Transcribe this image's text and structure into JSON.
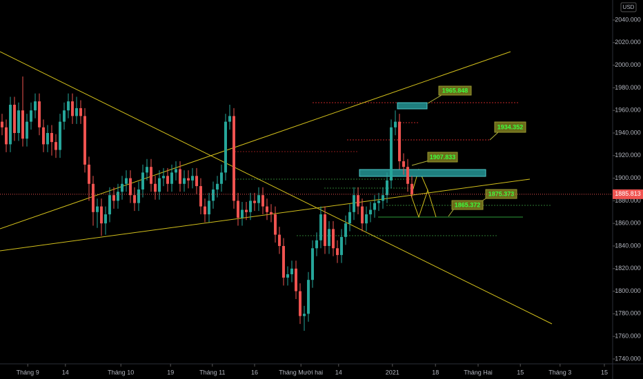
{
  "chart_data": {
    "type": "candlestick",
    "currency": "USD",
    "last_price": 1885.813,
    "colors": {
      "up": "#26a69a",
      "down": "#ef5350"
    },
    "annotations": [
      "1965.848",
      "1934.352",
      "1907.833",
      "1875.373",
      "1865.372"
    ],
    "xlim": [
      -0.5,
      147.5
    ],
    "xticks": [
      {
        "value": 6.2,
        "label": "Tháng 9"
      },
      {
        "value": 15.3,
        "label": "14"
      },
      {
        "value": 28.7,
        "label": "Tháng 10"
      },
      {
        "value": 40.7,
        "label": "19"
      },
      {
        "value": 50.8,
        "label": "Tháng 11"
      },
      {
        "value": 61,
        "label": "16"
      },
      {
        "value": 72.2,
        "label": "Tháng Mười hai"
      },
      {
        "value": 81.3,
        "label": "14"
      },
      {
        "value": 94.3,
        "label": "2021"
      },
      {
        "value": 104.7,
        "label": "18"
      },
      {
        "value": 115,
        "label": "Tháng Hai"
      },
      {
        "value": 125.2,
        "label": "15"
      },
      {
        "value": 134.8,
        "label": "Tháng 3"
      },
      {
        "value": 145.5,
        "label": "15"
      }
    ],
    "ylim": [
      1735.7,
      2057.7
    ],
    "yticks": [
      {
        "value": 1740,
        "label": "1740.000"
      },
      {
        "value": 1760,
        "label": "1760.000"
      },
      {
        "value": 1780,
        "label": "1780.000"
      },
      {
        "value": 1800,
        "label": "1800.000"
      },
      {
        "value": 1820,
        "label": "1820.000"
      },
      {
        "value": 1840,
        "label": "1840.000"
      },
      {
        "value": 1860,
        "label": "1860.000"
      },
      {
        "value": 1880,
        "label": "1880.000"
      },
      {
        "value": 1900,
        "label": "1900.000"
      },
      {
        "value": 1920,
        "label": "1920.000"
      },
      {
        "value": 1940,
        "label": "1940.000"
      },
      {
        "value": 1960,
        "label": "1960.000"
      },
      {
        "value": 1980,
        "label": "1980.000"
      },
      {
        "value": 2000,
        "label": "2000.000"
      },
      {
        "value": 2020,
        "label": "2020.000"
      },
      {
        "value": 2040,
        "label": "2040.000"
      }
    ],
    "open": [
      1950,
      1945,
      1930,
      1965,
      1940,
      1960,
      1935,
      1950,
      1960,
      1968,
      1945,
      1930,
      1940,
      1932,
      1925,
      1950,
      1960,
      1968,
      1955,
      1962,
      1955,
      1912,
      1895,
      1870,
      1875,
      1860,
      1868,
      1885,
      1880,
      1888,
      1895,
      1900,
      1885,
      1878,
      1890,
      1905,
      1910,
      1895,
      1888,
      1900,
      1902,
      1895,
      1905,
      1908,
      1895,
      1900,
      1898,
      1902,
      1893,
      1875,
      1868,
      1880,
      1890,
      1895,
      1905,
      1950,
      1955,
      1880,
      1865,
      1872,
      1870,
      1880,
      1878,
      1885,
      1875,
      1870,
      1868,
      1850,
      1840,
      1812,
      1815,
      1820,
      1800,
      1778,
      1780,
      1810,
      1838,
      1845,
      1868,
      1840,
      1855,
      1838,
      1832,
      1848,
      1860,
      1870,
      1885,
      1875,
      1860,
      1868,
      1872,
      1878,
      1880,
      1885,
      1898,
      1945,
      1950,
      1915,
      1910,
      1895
    ],
    "high": [
      1957,
      1952,
      1972,
      1972,
      1967,
      1990,
      1957,
      1967,
      1975,
      1975,
      1952,
      1947,
      1947,
      1939,
      1957,
      1967,
      1975,
      1975,
      1972,
      1969,
      1962,
      1919,
      1902,
      1882,
      1882,
      1875,
      1892,
      1892,
      1895,
      1902,
      1907,
      1907,
      1892,
      1897,
      1912,
      1917,
      1917,
      1902,
      1907,
      1909,
      1909,
      1912,
      1915,
      1915,
      1907,
      1907,
      1909,
      1909,
      1900,
      1882,
      1887,
      1897,
      1902,
      1912,
      1957,
      1965,
      1962,
      1887,
      1879,
      1879,
      1887,
      1887,
      1892,
      1892,
      1882,
      1877,
      1875,
      1857,
      1847,
      1822,
      1827,
      1827,
      1807,
      1787,
      1817,
      1845,
      1852,
      1875,
      1875,
      1862,
      1862,
      1845,
      1855,
      1867,
      1877,
      1892,
      1892,
      1882,
      1875,
      1879,
      1885,
      1887,
      1892,
      1905,
      1952,
      1960,
      1957,
      1922,
      1917,
      1902
    ],
    "low": [
      1938,
      1923,
      1923,
      1933,
      1933,
      1928,
      1928,
      1943,
      1953,
      1938,
      1923,
      1923,
      1920,
      1918,
      1918,
      1943,
      1953,
      1948,
      1948,
      1948,
      1905,
      1880,
      1858,
      1856,
      1849,
      1850,
      1861,
      1873,
      1873,
      1881,
      1888,
      1878,
      1871,
      1871,
      1883,
      1898,
      1888,
      1881,
      1881,
      1893,
      1888,
      1888,
      1898,
      1888,
      1888,
      1891,
      1891,
      1886,
      1868,
      1861,
      1861,
      1873,
      1883,
      1888,
      1898,
      1943,
      1873,
      1858,
      1858,
      1863,
      1863,
      1871,
      1871,
      1868,
      1863,
      1861,
      1843,
      1833,
      1805,
      1805,
      1808,
      1793,
      1771,
      1765,
      1773,
      1803,
      1831,
      1838,
      1833,
      1833,
      1831,
      1825,
      1825,
      1841,
      1853,
      1863,
      1868,
      1853,
      1853,
      1861,
      1865,
      1871,
      1873,
      1878,
      1891,
      1938,
      1908,
      1903,
      1888,
      1883
    ],
    "close": [
      1945,
      1930,
      1965,
      1940,
      1960,
      1935,
      1950,
      1960,
      1968,
      1945,
      1930,
      1940,
      1932,
      1925,
      1950,
      1960,
      1968,
      1955,
      1962,
      1955,
      1912,
      1895,
      1870,
      1875,
      1860,
      1868,
      1885,
      1880,
      1888,
      1895,
      1900,
      1885,
      1878,
      1890,
      1905,
      1910,
      1895,
      1888,
      1900,
      1902,
      1895,
      1905,
      1908,
      1895,
      1900,
      1898,
      1902,
      1893,
      1875,
      1868,
      1880,
      1890,
      1895,
      1905,
      1950,
      1955,
      1880,
      1865,
      1872,
      1870,
      1880,
      1878,
      1885,
      1875,
      1870,
      1868,
      1850,
      1840,
      1812,
      1815,
      1820,
      1800,
      1778,
      1780,
      1810,
      1838,
      1845,
      1868,
      1840,
      1855,
      1838,
      1832,
      1848,
      1860,
      1870,
      1885,
      1875,
      1860,
      1868,
      1872,
      1878,
      1880,
      1885,
      1898,
      1945,
      1950,
      1915,
      1910,
      1895,
      1885.813
    ]
  }
}
